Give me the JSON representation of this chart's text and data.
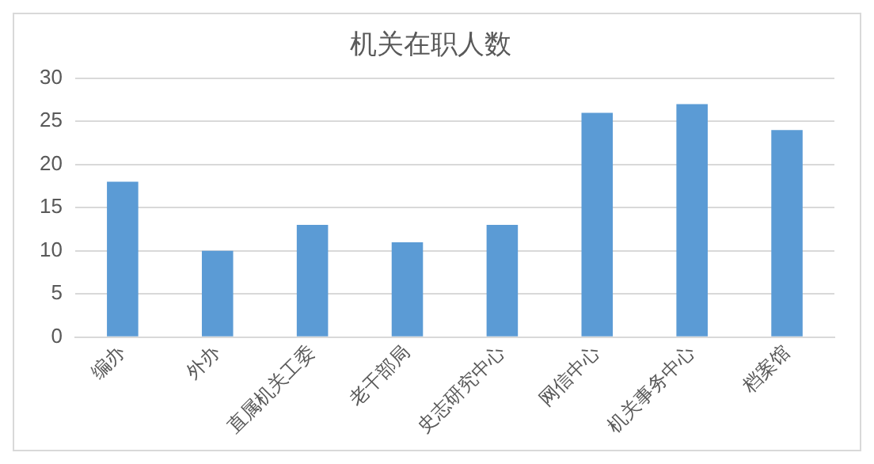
{
  "chart_data": {
    "type": "bar",
    "title": "机关在职人数",
    "categories": [
      "编办",
      "外办",
      "直属机关工委",
      "老干部局",
      "史志研究中心",
      "网信中心",
      "机关事务中心",
      "档案馆"
    ],
    "values": [
      18,
      10,
      13,
      11,
      13,
      26,
      27,
      24
    ],
    "color": "#5b9bd5",
    "ylim": [
      0,
      30
    ],
    "yticks": [
      0,
      5,
      10,
      15,
      20,
      25,
      30
    ],
    "grid": "y",
    "legend": false
  }
}
